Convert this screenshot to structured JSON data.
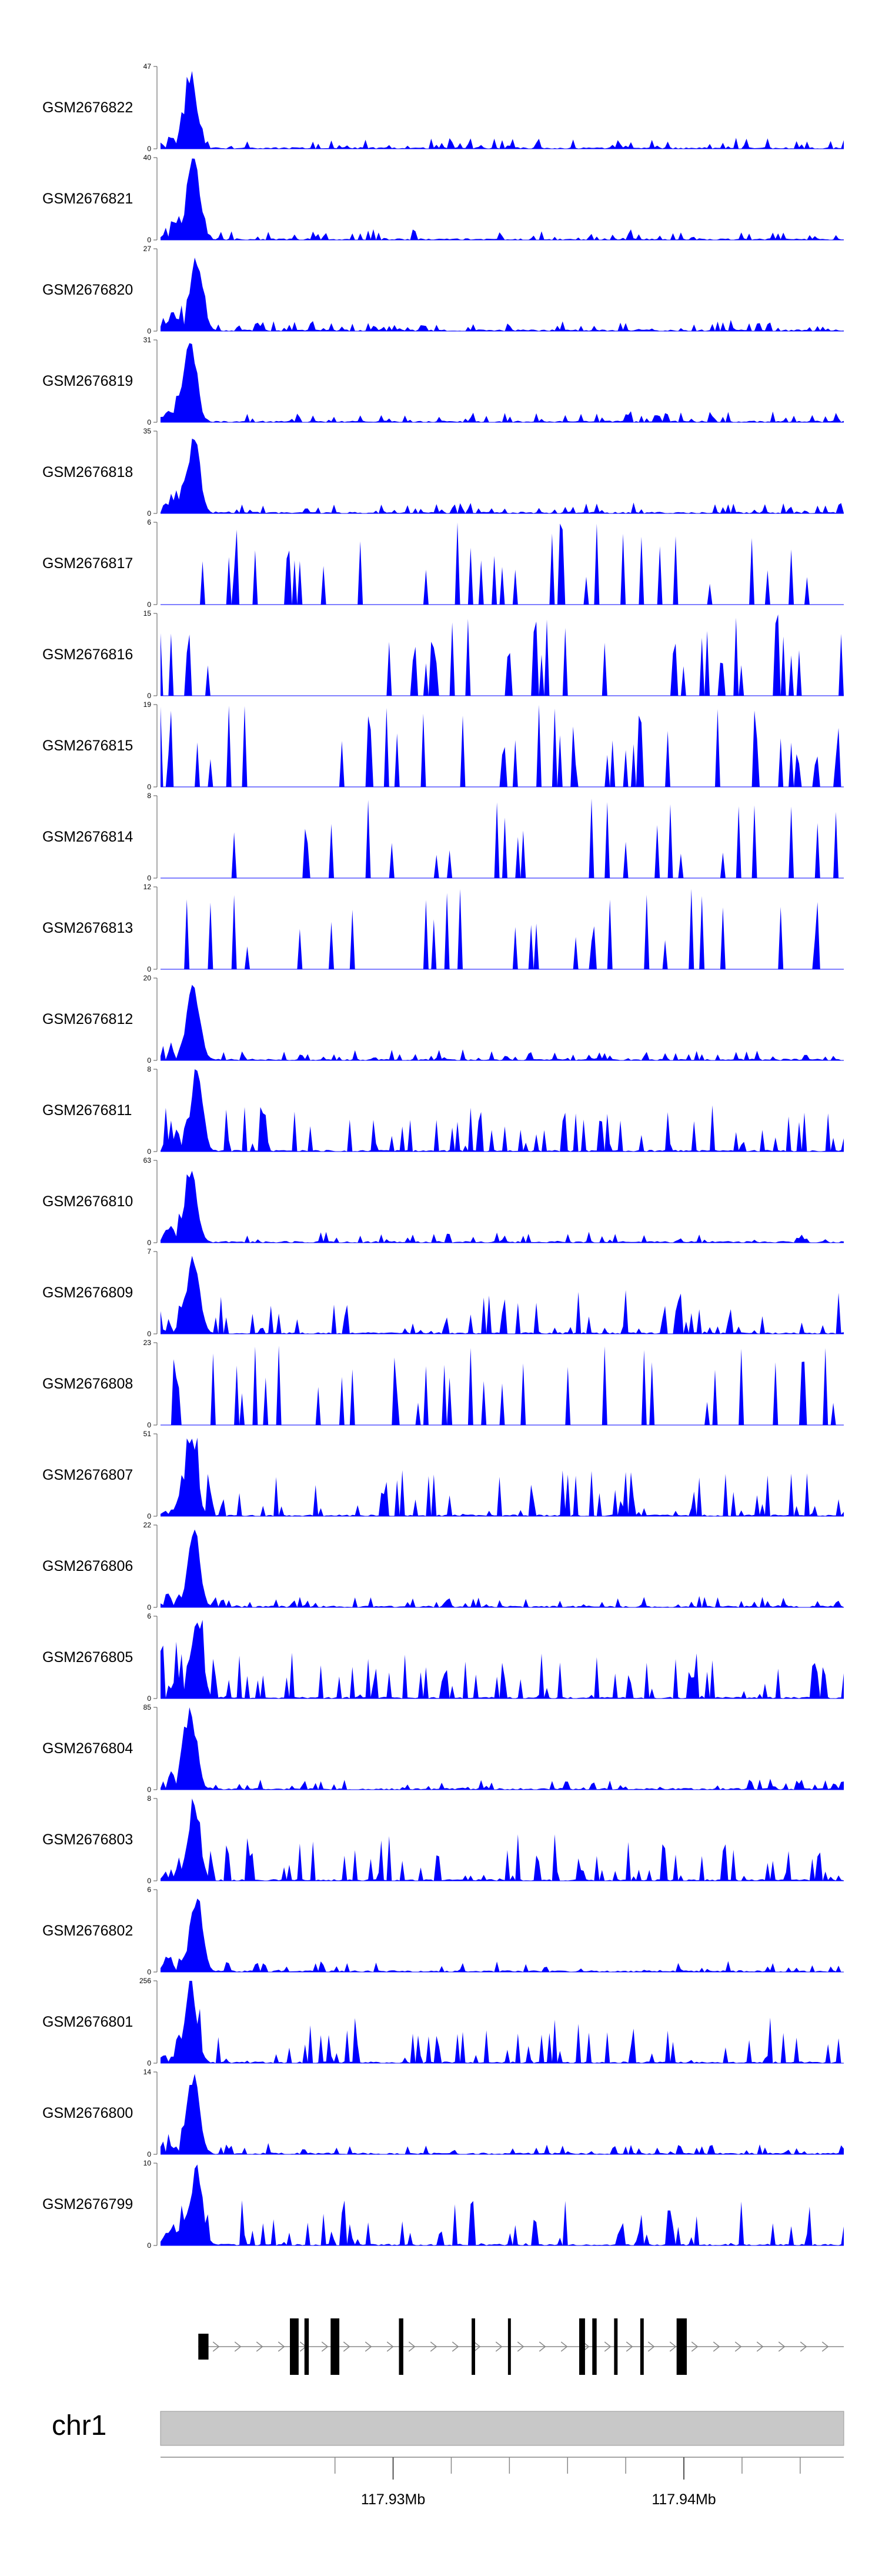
{
  "chart_data": {
    "type": "area",
    "title": "",
    "fill_color": "#0000ff",
    "x_range": [
      117.922,
      117.9455
    ],
    "tracks": [
      {
        "name": "GSM2676822",
        "ymax": 47,
        "ymin": 0
      },
      {
        "name": "GSM2676821",
        "ymax": 40,
        "ymin": 0
      },
      {
        "name": "GSM2676820",
        "ymax": 27,
        "ymin": 0
      },
      {
        "name": "GSM2676819",
        "ymax": 31,
        "ymin": 0
      },
      {
        "name": "GSM2676818",
        "ymax": 35,
        "ymin": 0
      },
      {
        "name": "GSM2676817",
        "ymax": 6,
        "ymin": 0
      },
      {
        "name": "GSM2676816",
        "ymax": 15,
        "ymin": 0
      },
      {
        "name": "GSM2676815",
        "ymax": 19,
        "ymin": 0
      },
      {
        "name": "GSM2676814",
        "ymax": 8,
        "ymin": 0
      },
      {
        "name": "GSM2676813",
        "ymax": 12,
        "ymin": 0
      },
      {
        "name": "GSM2676812",
        "ymax": 20,
        "ymin": 0
      },
      {
        "name": "GSM2676811",
        "ymax": 8,
        "ymin": 0
      },
      {
        "name": "GSM2676810",
        "ymax": 63,
        "ymin": 0
      },
      {
        "name": "GSM2676809",
        "ymax": 7,
        "ymin": 0
      },
      {
        "name": "GSM2676808",
        "ymax": 23,
        "ymin": 0
      },
      {
        "name": "GSM2676807",
        "ymax": 51,
        "ymin": 0
      },
      {
        "name": "GSM2676806",
        "ymax": 22,
        "ymin": 0
      },
      {
        "name": "GSM2676805",
        "ymax": 6,
        "ymin": 0
      },
      {
        "name": "GSM2676804",
        "ymax": 85,
        "ymin": 0
      },
      {
        "name": "GSM2676803",
        "ymax": 8,
        "ymin": 0
      },
      {
        "name": "GSM2676802",
        "ymax": 6,
        "ymin": 0
      },
      {
        "name": "GSM2676801",
        "ymax": 256,
        "ymin": 0
      },
      {
        "name": "GSM2676800",
        "ymax": 14,
        "ymin": 0
      },
      {
        "name": "GSM2676799",
        "ymax": 10,
        "ymin": 0
      }
    ],
    "gene_model": {
      "strand": "+",
      "exons": [
        [
          117.9233,
          117.92365
        ],
        [
          117.92645,
          117.92675
        ],
        [
          117.92695,
          117.9271
        ],
        [
          117.92785,
          117.92815
        ],
        [
          117.9302,
          117.93035
        ],
        [
          117.9327,
          117.93282
        ],
        [
          117.93395,
          117.93405
        ],
        [
          117.9364,
          117.9366
        ],
        [
          117.93685,
          117.937
        ],
        [
          117.9376,
          117.93772
        ],
        [
          117.9385,
          117.93862
        ],
        [
          117.93975,
          117.9401
        ]
      ]
    },
    "ideogram": {
      "chromosome": "chr1",
      "minor_ticks": [
        117.928,
        117.93,
        117.932,
        117.934,
        117.936,
        117.938,
        117.94,
        117.942,
        117.944
      ],
      "major_tick_labels": [
        {
          "value": 117.93,
          "label": "117.93Mb"
        },
        {
          "value": 117.94,
          "label": "117.94Mb"
        }
      ]
    }
  }
}
